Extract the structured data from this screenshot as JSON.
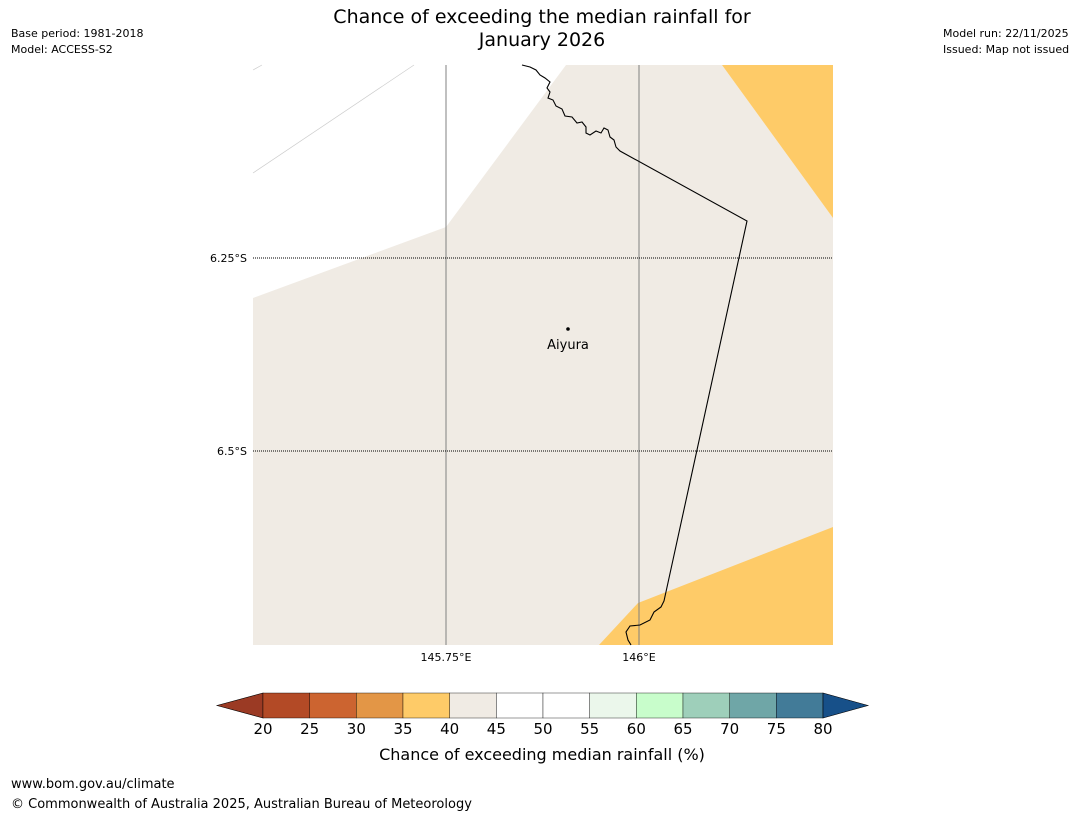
{
  "header": {
    "title_line1": "Chance of exceeding the median rainfall for",
    "title_line2": "January 2026",
    "base_period": "Base period: 1981-2018",
    "model": "Model: ACCESS-S2",
    "model_run": "Model run: 22/11/2025",
    "issued": "Issued: Map not issued"
  },
  "map": {
    "latitude_labels": [
      "6.25°S",
      "6.5°S"
    ],
    "longitude_labels": [
      "145.75°E",
      "146°E"
    ],
    "place": "Aiyura",
    "colors": {
      "above_40_45": "#f0ebe4",
      "band_35_40": "#fecb68",
      "border": "#000000",
      "gridline": "#808080"
    }
  },
  "legend": {
    "label": "Chance of exceeding median rainfall (%)",
    "ticks": [
      "20",
      "25",
      "30",
      "35",
      "40",
      "45",
      "50",
      "55",
      "60",
      "65",
      "70",
      "75",
      "80"
    ],
    "colors": [
      "#9b3a24",
      "#b34a26",
      "#cc6430",
      "#e39646",
      "#fecb68",
      "#f0ebe4",
      "#ffffff",
      "#ffffff",
      "#ebf7eb",
      "#c8fdcb",
      "#9ecfba",
      "#6fa6a7",
      "#427b98",
      "#175089"
    ]
  },
  "footer": {
    "website": "www.bom.gov.au/climate",
    "copyright": "© Commonwealth of Australia 2025, Australian Bureau of Meteorology"
  }
}
